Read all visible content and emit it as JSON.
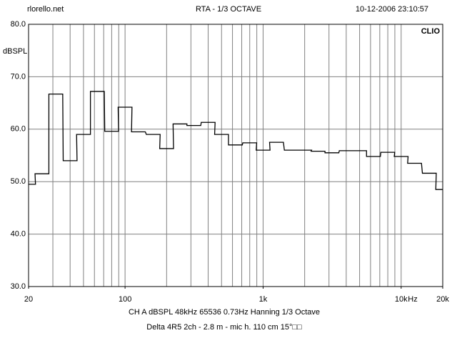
{
  "chart_data": {
    "type": "step",
    "title": "RTA - 1/3 OCTAVE",
    "site": "rlorello.net",
    "timestamp": "10-12-2006 23:10:57",
    "brand": "CLIO",
    "y_label": "dBSPL",
    "x_label": "Hz",
    "footer": [
      "CH A   dBSPL   48kHz   65536   0.73Hz   Hanning   1/3 Octave",
      "Delta 4R5 2ch - 2.8 m - mic h. 110 cm 15°□□"
    ],
    "log_x": true,
    "band_width_octaves": 0.3333333333333333,
    "x": [
      20,
      25,
      31.5,
      40,
      50,
      63,
      80,
      100,
      125,
      160,
      200,
      250,
      315,
      400,
      500,
      630,
      800,
      1000,
      1250,
      1600,
      2000,
      2500,
      3150,
      4000,
      5000,
      6300,
      8000,
      10000,
      12500,
      16000,
      20000
    ],
    "series": [
      {
        "name": "CH A",
        "color": "#000000",
        "values": [
          49.5,
          51.5,
          66.7,
          54,
          59,
          67.2,
          59.6,
          64.2,
          59.5,
          59,
          56.3,
          61,
          60.7,
          61.3,
          59,
          57,
          57.4,
          56,
          57.5,
          56,
          56,
          55.8,
          55.5,
          55.9,
          55.9,
          54.8,
          55.6,
          54.8,
          53.5,
          51.6,
          48.5
        ]
      }
    ],
    "xlim": [
      20,
      20000
    ],
    "ylim": [
      30,
      80
    ],
    "xticks": [
      20,
      100,
      {
        "value": 1000,
        "label": "1k"
      },
      {
        "value": 10000,
        "label": "10k"
      },
      {
        "value": 20000,
        "label": "20k"
      }
    ],
    "xgrid": [
      30,
      40,
      50,
      60,
      70,
      80,
      90,
      100,
      200,
      300,
      400,
      500,
      600,
      700,
      800,
      900,
      1000,
      2000,
      3000,
      4000,
      5000,
      6000,
      7000,
      8000,
      9000,
      10000
    ],
    "yticks": [
      {
        "value": 30,
        "label": "30.0"
      },
      {
        "value": 40,
        "label": "40.0"
      },
      {
        "value": 50,
        "label": "50.0"
      },
      {
        "value": 60,
        "label": "60.0"
      },
      {
        "value": 70,
        "label": "70.0"
      },
      {
        "value": 80,
        "label": "80.0"
      }
    ],
    "grid": true
  }
}
